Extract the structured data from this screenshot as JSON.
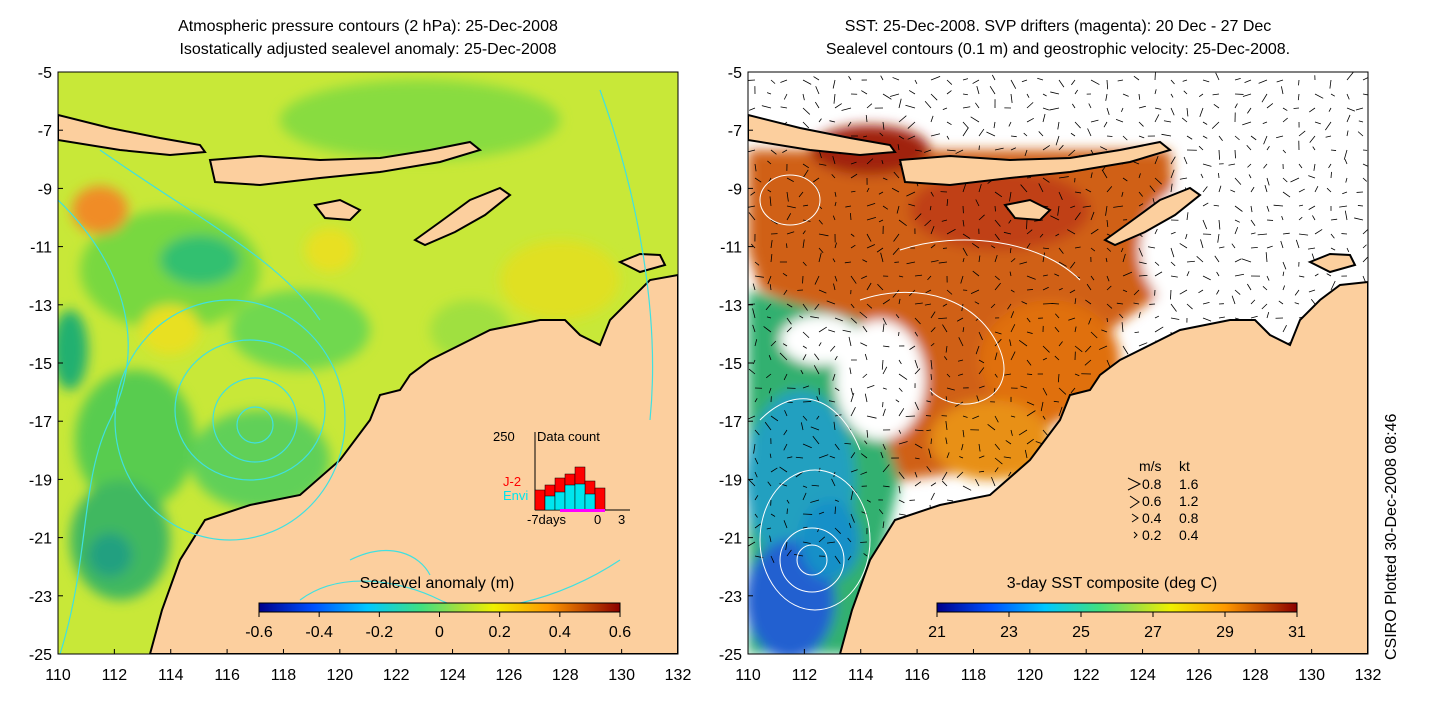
{
  "left_panel": {
    "title_line1": "Atmospheric pressure contours (2 hPa): 25-Dec-2008",
    "title_line2": "Isostatically adjusted sealevel anomaly: 25-Dec-2008",
    "colorbar": {
      "label": "Sealevel anomaly (m)",
      "ticks": [
        "-0.6",
        "-0.4",
        "-0.2",
        "0",
        "0.2",
        "0.4",
        "0.6"
      ],
      "range": [
        -0.6,
        0.6
      ]
    },
    "inset": {
      "title": "Data count",
      "max_label": "250",
      "x_ticks": [
        "-7days",
        "0",
        "3"
      ],
      "series": [
        {
          "name": "J-2",
          "color": "#ff0000"
        },
        {
          "name": "Envi",
          "color": "#00e5ee"
        }
      ]
    }
  },
  "right_panel": {
    "title_line1": "SST: 25-Dec-2008. SVP drifters (magenta): 20 Dec - 27 Dec",
    "title_line2": "Sealevel contours (0.1 m) and geostrophic velocity: 25-Dec-2008.",
    "colorbar": {
      "label": "3-day SST composite (deg C)",
      "ticks": [
        "21",
        "23",
        "25",
        "27",
        "29",
        "31"
      ],
      "range": [
        21,
        31
      ]
    },
    "velocity_legend": {
      "header_ms": "m/s",
      "header_kt": "kt",
      "rows": [
        {
          "ms": "0.8",
          "kt": "1.6"
        },
        {
          "ms": "0.6",
          "kt": "1.2"
        },
        {
          "ms": "0.4",
          "kt": "0.8"
        },
        {
          "ms": "0.2",
          "kt": "0.4"
        }
      ]
    }
  },
  "axes": {
    "y_ticks": [
      "-5",
      "-7",
      "-9",
      "-11",
      "-13",
      "-15",
      "-17",
      "-19",
      "-21",
      "-23",
      "-25"
    ],
    "x_ticks": [
      "110",
      "112",
      "114",
      "116",
      "118",
      "120",
      "122",
      "124",
      "126",
      "128",
      "130",
      "132"
    ],
    "lat_range": [
      -25,
      -5
    ],
    "lon_range": [
      110,
      132
    ]
  },
  "credit": "CSIRO Plotted 30-Dec-2008 08:46",
  "colors": {
    "land": "#fccf9e",
    "contour_left": "#40e0e0",
    "contour_right": "#ffffff",
    "coast": "#000000"
  }
}
